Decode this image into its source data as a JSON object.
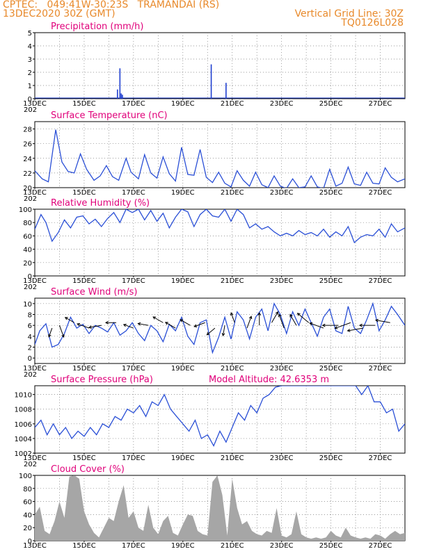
{
  "header": {
    "line1": "CPTEC:   049:41W-30:23S   TRAMANDAI (RS)",
    "line2": "13DEC2020 30Z (GMT)",
    "grid_note": "Vertical Grid Line: 30Z",
    "code": "TQ0126L028"
  },
  "x_labels": [
    "13DEC",
    "15DEC",
    "17DEC",
    "19DEC",
    "21DEC",
    "23DEC",
    "25DEC",
    "27DEC"
  ],
  "x_label_days": [
    0,
    2,
    4,
    6,
    8,
    10,
    12,
    14
  ],
  "x_cut_label": "202",
  "chart_data": [
    {
      "type": "bar",
      "title": "Precipitation (mm/h)",
      "xlim": [
        0,
        15
      ],
      "ylim": [
        0,
        5
      ],
      "yticks": [
        0,
        1,
        2,
        3,
        4,
        5
      ],
      "color": "#1f3fd0",
      "x": [
        3.35,
        3.45,
        3.5,
        3.55,
        7.15,
        7.75
      ],
      "values": [
        0.7,
        2.3,
        0.4,
        0.3,
        2.6,
        1.2
      ]
    },
    {
      "type": "line",
      "title": "Surface Temperature (nC)",
      "xlim": [
        0,
        15
      ],
      "ylim": [
        20,
        29
      ],
      "yticks": [
        20,
        22,
        24,
        26,
        28
      ],
      "color": "#2a4fd6",
      "x": [
        0,
        0.3,
        0.55,
        0.85,
        1.1,
        1.35,
        1.6,
        1.85,
        2.1,
        2.4,
        2.65,
        2.9,
        3.15,
        3.4,
        3.7,
        3.9,
        4.2,
        4.45,
        4.7,
        4.95,
        5.2,
        5.45,
        5.7,
        5.95,
        6.2,
        6.45,
        6.7,
        6.95,
        7.2,
        7.45,
        7.7,
        7.95,
        8.2,
        8.45,
        8.7,
        8.95,
        9.2,
        9.45,
        9.7,
        9.95,
        10.2,
        10.45,
        10.7,
        10.95,
        11.2,
        11.45,
        11.7,
        11.95,
        12.2,
        12.45,
        12.7,
        12.95,
        13.2,
        13.45,
        13.7,
        13.95,
        14.2,
        14.45,
        14.7,
        15
      ],
      "values": [
        22.3,
        21.2,
        20.8,
        27.9,
        23.5,
        22.2,
        22.0,
        24.6,
        22.5,
        21.0,
        21.6,
        23.0,
        21.5,
        21.0,
        24.0,
        22.1,
        21.2,
        24.5,
        22.0,
        21.3,
        24.2,
        21.9,
        20.9,
        25.5,
        21.8,
        21.7,
        25.2,
        21.4,
        20.7,
        22.1,
        20.6,
        20.1,
        22.3,
        21.0,
        20.2,
        22.1,
        20.4,
        20.0,
        21.6,
        20.2,
        19.9,
        21.2,
        20.0,
        20.1,
        21.6,
        20.1,
        19.9,
        22.5,
        20.2,
        20.6,
        22.8,
        20.5,
        20.3,
        22.1,
        20.6,
        20.5,
        22.7,
        21.4,
        20.8,
        21.2
      ]
    },
    {
      "type": "line",
      "title": "Relative Humidity (%)",
      "xlim": [
        0,
        15
      ],
      "ylim": [
        0,
        100
      ],
      "yticks": [
        0,
        20,
        40,
        60,
        80,
        100
      ],
      "color": "#2a4fd6",
      "x": [
        0,
        0.25,
        0.45,
        0.7,
        0.95,
        1.2,
        1.45,
        1.7,
        1.95,
        2.2,
        2.45,
        2.7,
        2.95,
        3.2,
        3.45,
        3.7,
        3.95,
        4.2,
        4.45,
        4.7,
        4.95,
        5.2,
        5.45,
        5.7,
        5.95,
        6.2,
        6.45,
        6.7,
        6.95,
        7.2,
        7.45,
        7.7,
        7.95,
        8.2,
        8.45,
        8.7,
        8.95,
        9.2,
        9.45,
        9.7,
        9.95,
        10.2,
        10.45,
        10.7,
        10.95,
        11.2,
        11.45,
        11.7,
        11.95,
        12.2,
        12.45,
        12.7,
        12.95,
        13.2,
        13.45,
        13.7,
        13.95,
        14.2,
        14.45,
        14.7,
        15
      ],
      "values": [
        70,
        92,
        80,
        52,
        65,
        84,
        72,
        88,
        90,
        78,
        85,
        74,
        86,
        95,
        80,
        100,
        95,
        100,
        84,
        98,
        82,
        94,
        72,
        88,
        100,
        96,
        74,
        92,
        100,
        90,
        88,
        100,
        82,
        100,
        92,
        72,
        78,
        70,
        74,
        66,
        60,
        64,
        60,
        68,
        62,
        65,
        60,
        70,
        58,
        66,
        60,
        74,
        50,
        58,
        62,
        60,
        70,
        58,
        78,
        66,
        72
      ]
    },
    {
      "type": "line",
      "title": "Surface Wind (m/s)",
      "xlim": [
        0,
        15
      ],
      "ylim": [
        -1,
        11
      ],
      "yticks": [
        0,
        2,
        4,
        6,
        8,
        10
      ],
      "color": "#2a4fd6",
      "x": [
        0,
        0.2,
        0.45,
        0.7,
        0.95,
        1.2,
        1.45,
        1.7,
        1.95,
        2.2,
        2.45,
        2.7,
        2.95,
        3.2,
        3.45,
        3.7,
        3.95,
        4.2,
        4.45,
        4.7,
        4.95,
        5.2,
        5.45,
        5.7,
        5.95,
        6.2,
        6.45,
        6.7,
        6.95,
        7.2,
        7.45,
        7.7,
        7.95,
        8.2,
        8.45,
        8.7,
        8.95,
        9.2,
        9.45,
        9.7,
        9.95,
        10.2,
        10.45,
        10.7,
        10.95,
        11.2,
        11.45,
        11.7,
        11.95,
        12.2,
        12.45,
        12.7,
        12.95,
        13.2,
        13.45,
        13.7,
        13.95,
        14.2,
        14.45,
        14.7,
        15
      ],
      "values": [
        2.5,
        5.0,
        6.3,
        2.0,
        2.5,
        4.5,
        7.5,
        5.5,
        6.2,
        4.5,
        6.0,
        5.5,
        4.8,
        6.5,
        4.2,
        5.0,
        6.5,
        4.5,
        3.2,
        6.0,
        5.0,
        3.0,
        6.2,
        5.0,
        7.5,
        4.0,
        2.5,
        6.5,
        7.0,
        1.0,
        3.8,
        7.5,
        3.5,
        8.5,
        7.0,
        3.5,
        7.5,
        9.0,
        5.0,
        10.0,
        8.0,
        4.5,
        8.5,
        6.0,
        9.0,
        6.5,
        4.0,
        7.5,
        9.0,
        5.0,
        4.5,
        9.5,
        5.5,
        4.5,
        7.0,
        10.0,
        5.0,
        7.0,
        9.5,
        8.0,
        6.0
      ],
      "arrows": {
        "x": [
          0.7,
          1.0,
          1.6,
          2.2,
          2.7,
          3.3,
          4.0,
          4.6,
          5.2,
          5.7,
          6.3,
          6.9,
          7.3,
          7.7,
          8.1,
          8.6,
          9.1,
          9.6,
          10.1,
          10.6,
          11.1,
          11.7,
          12.3,
          12.8,
          13.3,
          13.8,
          14.4
        ],
        "speed": [
          2.5,
          4,
          3,
          4,
          4,
          3,
          3,
          3,
          3.5,
          3.5,
          3.5,
          3.5,
          3,
          3,
          3,
          4,
          4,
          4,
          5,
          4,
          5,
          5,
          5.5,
          6,
          5.5,
          5.5,
          5
        ],
        "dir_deg": [
          250,
          290,
          150,
          160,
          190,
          180,
          160,
          170,
          150,
          150,
          150,
          200,
          220,
          260,
          110,
          70,
          90,
          60,
          110,
          120,
          140,
          160,
          180,
          200,
          190,
          180,
          170
        ]
      }
    },
    {
      "type": "line",
      "title": "Surface Pressure (hPa)",
      "subtitle": "Model Altitude: 42.6353 m",
      "xlim": [
        0,
        15
      ],
      "ylim": [
        1002,
        1011.2
      ],
      "yticks": [
        1002,
        1004,
        1006,
        1008,
        1010
      ],
      "color": "#2a4fd6",
      "x": [
        0,
        0.25,
        0.5,
        0.75,
        1.0,
        1.25,
        1.5,
        1.75,
        2.0,
        2.25,
        2.5,
        2.75,
        3.0,
        3.25,
        3.5,
        3.75,
        4.0,
        4.25,
        4.5,
        4.75,
        5.0,
        5.25,
        5.5,
        5.75,
        6.0,
        6.25,
        6.5,
        6.75,
        7.0,
        7.25,
        7.5,
        7.75,
        8.0,
        8.25,
        8.5,
        8.75,
        9.0,
        9.25,
        9.5,
        9.75,
        10.0,
        10.25,
        10.5,
        10.75,
        11.0,
        11.25,
        11.5,
        11.75,
        12.0,
        12.25,
        12.5,
        12.75,
        13.0,
        13.25,
        13.5,
        13.75,
        14.0,
        14.25,
        14.5,
        14.75,
        15
      ],
      "values": [
        1005.5,
        1006.5,
        1004.5,
        1006.0,
        1004.5,
        1005.5,
        1004.0,
        1005.0,
        1004.3,
        1005.5,
        1004.5,
        1006.0,
        1005.5,
        1007.0,
        1006.5,
        1008.0,
        1007.5,
        1008.5,
        1007.0,
        1009.0,
        1008.5,
        1010.0,
        1008.0,
        1007.0,
        1006.0,
        1005.0,
        1006.5,
        1004.0,
        1004.5,
        1003.0,
        1005.0,
        1003.5,
        1005.5,
        1007.5,
        1006.5,
        1008.5,
        1007.5,
        1009.5,
        1010.0,
        1011.0,
        1011.2,
        1011.2,
        1011.2,
        1011.2,
        1011.2,
        1011.2,
        1011.2,
        1011.2,
        1011.2,
        1011.2,
        1011.2,
        1011.2,
        1011.2,
        1010.0,
        1011.2,
        1009.0,
        1009.0,
        1007.5,
        1008.0,
        1005.0,
        1006.0
      ]
    },
    {
      "type": "area",
      "title": "Cloud Cover (%)",
      "xlim": [
        0,
        15
      ],
      "ylim": [
        0,
        100
      ],
      "yticks": [
        0,
        20,
        40,
        60,
        80,
        100
      ],
      "color": "#a6a6a6",
      "x": [
        0,
        0.2,
        0.4,
        0.6,
        0.8,
        1.0,
        1.2,
        1.4,
        1.6,
        1.8,
        2.0,
        2.2,
        2.4,
        2.6,
        2.8,
        3.0,
        3.2,
        3.4,
        3.6,
        3.8,
        4.0,
        4.2,
        4.4,
        4.6,
        4.8,
        5.0,
        5.2,
        5.4,
        5.6,
        5.8,
        6.0,
        6.2,
        6.4,
        6.6,
        6.8,
        7.0,
        7.2,
        7.4,
        7.6,
        7.8,
        8.0,
        8.2,
        8.4,
        8.6,
        8.8,
        9.0,
        9.2,
        9.4,
        9.6,
        9.8,
        10.0,
        10.2,
        10.4,
        10.6,
        10.8,
        11.0,
        11.2,
        11.4,
        11.6,
        11.8,
        12.0,
        12.2,
        12.4,
        12.6,
        12.8,
        13.0,
        13.2,
        13.4,
        13.6,
        13.8,
        14.0,
        14.2,
        14.4,
        14.6,
        14.8,
        15
      ],
      "values": [
        40,
        52,
        15,
        10,
        30,
        60,
        35,
        98,
        100,
        95,
        45,
        25,
        12,
        5,
        20,
        35,
        30,
        60,
        85,
        35,
        45,
        20,
        15,
        55,
        20,
        10,
        30,
        38,
        12,
        8,
        25,
        40,
        38,
        15,
        10,
        8,
        90,
        100,
        70,
        8,
        95,
        50,
        25,
        30,
        15,
        10,
        8,
        15,
        12,
        50,
        8,
        5,
        10,
        45,
        10,
        5,
        3,
        5,
        3,
        5,
        15,
        8,
        5,
        20,
        8,
        5,
        3,
        5,
        3,
        10,
        8,
        3,
        10,
        15,
        10,
        12
      ]
    }
  ]
}
